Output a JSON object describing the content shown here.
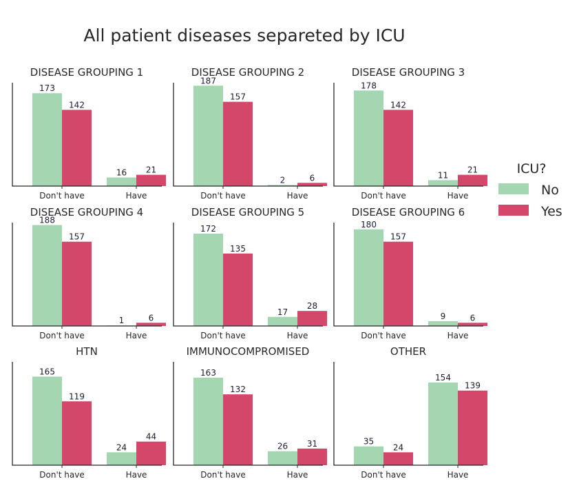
{
  "colors": {
    "No": "#a3d6b1",
    "Yes": "#d2476a"
  },
  "chart_data": {
    "type": "bar",
    "title": "All patient diseases separeted by ICU",
    "legend": {
      "title": "ICU?",
      "entries": [
        "No",
        "Yes"
      ],
      "placement": "right"
    },
    "categories": [
      "Don't have",
      "Have"
    ],
    "grid": false,
    "panels": [
      {
        "title": "DISEASE GROUPING 1",
        "ylim": [
          0,
          190
        ],
        "series": [
          {
            "name": "No",
            "values": [
              173,
              16
            ]
          },
          {
            "name": "Yes",
            "values": [
              142,
              21
            ]
          }
        ]
      },
      {
        "title": "DISEASE GROUPING 2",
        "ylim": [
          0,
          190
        ],
        "series": [
          {
            "name": "No",
            "values": [
              187,
              2
            ]
          },
          {
            "name": "Yes",
            "values": [
              157,
              6
            ]
          }
        ]
      },
      {
        "title": "DISEASE GROUPING 3",
        "ylim": [
          0,
          190
        ],
        "series": [
          {
            "name": "No",
            "values": [
              178,
              11
            ]
          },
          {
            "name": "Yes",
            "values": [
              142,
              21
            ]
          }
        ]
      },
      {
        "title": "DISEASE GROUPING 4",
        "ylim": [
          0,
          190
        ],
        "series": [
          {
            "name": "No",
            "values": [
              188,
              1
            ]
          },
          {
            "name": "Yes",
            "values": [
              157,
              6
            ]
          }
        ]
      },
      {
        "title": "DISEASE GROUPING 5",
        "ylim": [
          0,
          190
        ],
        "series": [
          {
            "name": "No",
            "values": [
              172,
              17
            ]
          },
          {
            "name": "Yes",
            "values": [
              135,
              28
            ]
          }
        ]
      },
      {
        "title": "DISEASE GROUPING 6",
        "ylim": [
          0,
          190
        ],
        "series": [
          {
            "name": "No",
            "values": [
              180,
              9
            ]
          },
          {
            "name": "Yes",
            "values": [
              157,
              6
            ]
          }
        ]
      },
      {
        "title": "HTN",
        "ylim": [
          0,
          190
        ],
        "series": [
          {
            "name": "No",
            "values": [
              165,
              24
            ]
          },
          {
            "name": "Yes",
            "values": [
              119,
              44
            ]
          }
        ]
      },
      {
        "title": "IMMUNOCOMPROMISED",
        "ylim": [
          0,
          190
        ],
        "series": [
          {
            "name": "No",
            "values": [
              163,
              26
            ]
          },
          {
            "name": "Yes",
            "values": [
              132,
              31
            ]
          }
        ]
      },
      {
        "title": "OTHER",
        "ylim": [
          0,
          190
        ],
        "series": [
          {
            "name": "No",
            "values": [
              35,
              154
            ]
          },
          {
            "name": "Yes",
            "values": [
              24,
              139
            ]
          }
        ]
      }
    ]
  }
}
